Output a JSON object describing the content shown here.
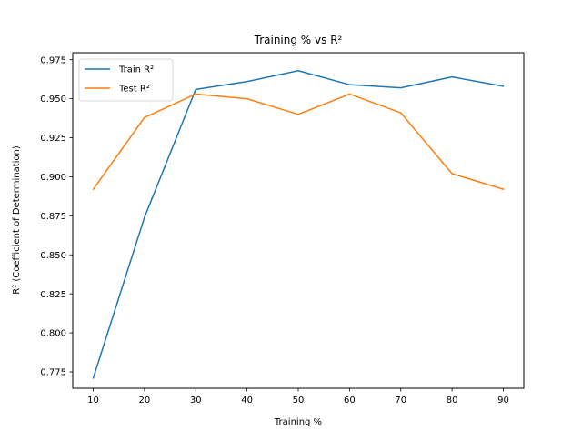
{
  "chart_data": {
    "type": "line",
    "title": "Training % vs R²",
    "xlabel": "Training %",
    "ylabel": "R² (Coefficient of Determination)",
    "x": [
      10,
      20,
      30,
      40,
      50,
      60,
      70,
      80,
      90
    ],
    "xticks": [
      "10",
      "20",
      "30",
      "40",
      "50",
      "60",
      "70",
      "80",
      "90"
    ],
    "yticks": [
      "0.775",
      "0.800",
      "0.825",
      "0.850",
      "0.875",
      "0.900",
      "0.925",
      "0.950",
      "0.975"
    ],
    "xlim": [
      6,
      94
    ],
    "ylim": [
      0.7645,
      0.9795
    ],
    "grid": false,
    "legend": {
      "position": "upper-left"
    },
    "series": [
      {
        "name": "Train R²",
        "color": "#1f77b4",
        "values": [
          0.771,
          0.874,
          0.956,
          0.961,
          0.968,
          0.959,
          0.957,
          0.964,
          0.958
        ]
      },
      {
        "name": "Test R²",
        "color": "#ff7f0e",
        "values": [
          0.892,
          0.938,
          0.953,
          0.95,
          0.94,
          0.953,
          0.941,
          0.902,
          0.892
        ]
      }
    ]
  }
}
